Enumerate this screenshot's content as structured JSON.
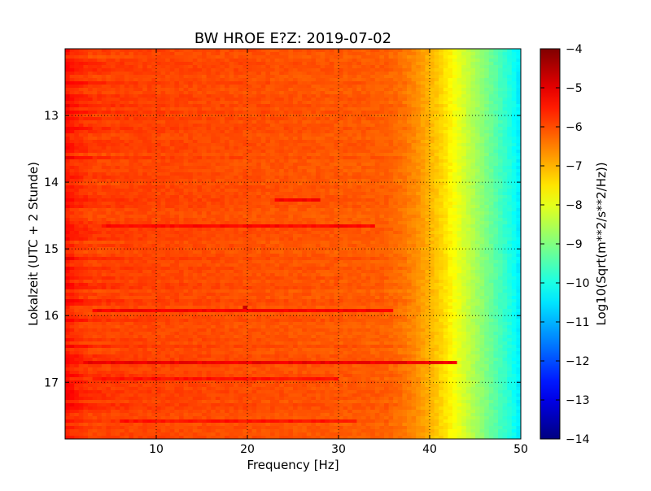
{
  "chart_data": {
    "type": "heatmap",
    "title": "BW HROE E?Z: 2019-07-02",
    "xlabel": "Frequency [Hz]",
    "ylabel": "Lokalzeit (UTC + 2 Stunde)",
    "xlim": [
      0,
      50
    ],
    "ylim": [
      12.0,
      17.85
    ],
    "y_inverted": true,
    "x_ticks": [
      10,
      20,
      30,
      40,
      50
    ],
    "y_ticks": [
      13,
      14,
      15,
      16,
      17
    ],
    "grid": true,
    "colormap": "jet",
    "colorbar": {
      "label": "Log10(Sqrt(m**2/s**2/Hz))",
      "range": [
        -14,
        -4
      ],
      "ticks": [
        -4,
        -5,
        -6,
        -7,
        -8,
        -9,
        -10,
        -11,
        -12,
        -13,
        -14
      ]
    },
    "background_profile": {
      "frequency_hz": [
        0,
        1,
        3,
        6,
        10,
        20,
        30,
        35,
        37,
        38.5,
        40,
        41.5,
        43,
        45,
        47,
        49,
        50
      ],
      "value": [
        -5.3,
        -5.6,
        -5.8,
        -5.85,
        -5.9,
        -6.0,
        -6.1,
        -6.15,
        -6.35,
        -6.6,
        -7.0,
        -7.4,
        -7.9,
        -8.6,
        -9.3,
        -10.0,
        -10.5
      ]
    },
    "events": [
      {
        "time": 14.25,
        "f_start": 23,
        "f_end": 28,
        "value": -5.2
      },
      {
        "time": 14.65,
        "f_start": 4,
        "f_end": 34,
        "value": -5.3
      },
      {
        "time": 15.92,
        "f_start": 3,
        "f_end": 36,
        "value": -5.2
      },
      {
        "time": 15.86,
        "f_start": 19.4,
        "f_end": 20.1,
        "value": -4.8
      },
      {
        "time": 16.71,
        "f_start": 2,
        "f_end": 43,
        "value": -5.1
      },
      {
        "time": 16.95,
        "f_start": 3,
        "f_end": 30,
        "value": -5.4
      },
      {
        "time": 17.6,
        "f_start": 6,
        "f_end": 32,
        "value": -5.4
      }
    ]
  }
}
